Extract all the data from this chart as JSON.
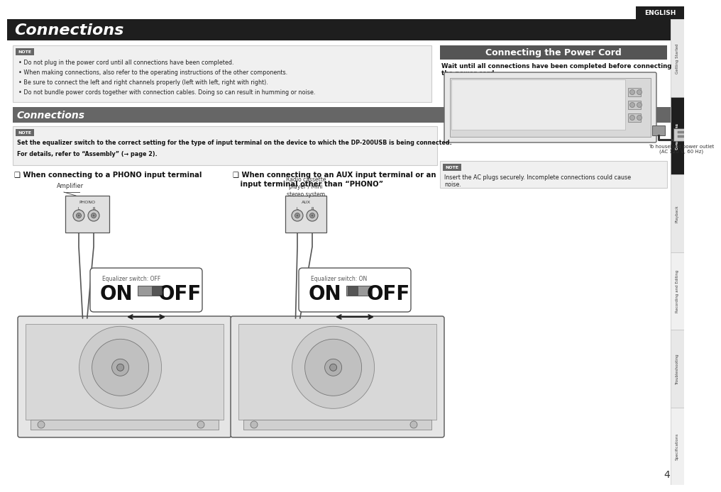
{
  "bg_color": "#ffffff",
  "title_bar_color": "#1e1e1e",
  "title_text": "Connections",
  "title_color": "#ffffff",
  "english_box_color": "#1e1e1e",
  "english_text": "ENGLISH",
  "sidebar_labels": [
    "Getting Started",
    "Connections",
    "Playback",
    "Recording and Editing",
    "Troubleshooting",
    "Specifications"
  ],
  "sidebar_active": "Connections",
  "sidebar_active_color": "#1e1e1e",
  "sidebar_inactive_color": "#f0f0f0",
  "note_label_bg": "#666666",
  "connections_bar_color": "#666666",
  "connections_bar_text": "Connections",
  "connections_bar_text_color": "#ffffff",
  "power_cord_title": "Connecting the Power Cord",
  "power_cord_title_bg": "#555555",
  "power_cord_title_color": "#ffffff",
  "page_number": "4",
  "main_note_bullets": [
    "Do not plug in the power cord until all connections have been completed.",
    "When making connections, also refer to the operating instructions of the other components.",
    "Be sure to connect the left and right channels properly (left with left, right with right).",
    "Do not bundle power cords together with connection cables. Doing so can result in humming or noise."
  ],
  "sub_note_line1": "Set the equalizer switch to the correct setting for the type of input terminal on the device to which the DP-200USB is being connected.",
  "sub_note_line2": "For details, refer to “Assembly” (→ page 2).",
  "phono_heading": "❑ When connecting to a PHONO input terminal",
  "aux_heading_line1": "❑ When connecting to an AUX input terminal or an",
  "aux_heading_line2": "   input terminal other than “PHONO”",
  "phono_eq_label": "Equalizer switch: OFF",
  "aux_eq_label": "Equalizer switch: ON",
  "power_wait_text": "Wait until all connections have been completed before connecting\nthe power cord.",
  "power_note_text": "Insert the AC plugs securely. Incomplete connections could cause\nnoise.",
  "household_outlet_text": "To household power outlet\n(AC 120 V, 60 Hz)",
  "amplifier_label": "Amplifier",
  "radio_cassette_label": "Radio cassette\nplayer / Mini\nstereo system"
}
